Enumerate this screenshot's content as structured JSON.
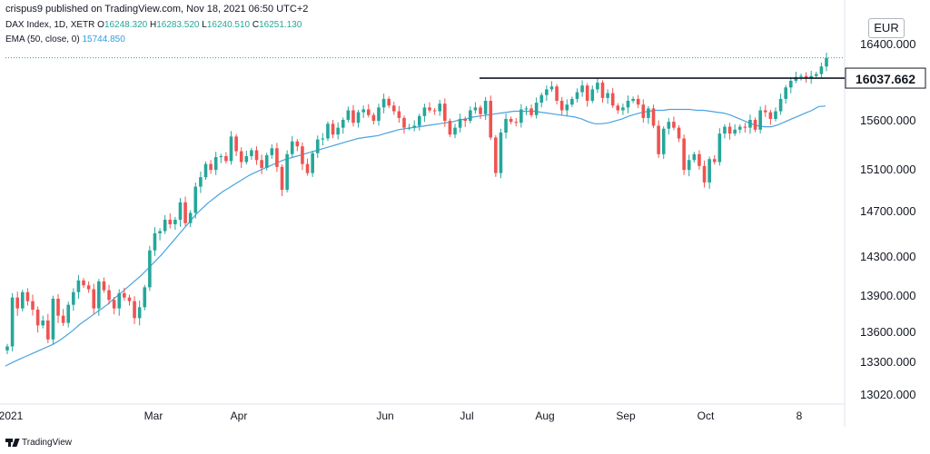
{
  "header": {
    "published": "crispus9 published on TradingView.com, Nov 18, 2021 06:50 UTC+2",
    "symbol": "DAX Index, 1D, XETR",
    "ohlc": [
      {
        "label": "O",
        "value": "16248.320"
      },
      {
        "label": "H",
        "value": "16283.520"
      },
      {
        "label": "L",
        "value": "16240.510"
      },
      {
        "label": "C",
        "value": "16251.130"
      }
    ],
    "ema_label": "EMA (50, close, 0)",
    "ema_value": "15744.850"
  },
  "currency": "EUR",
  "footer": {
    "brand": "TradingView"
  },
  "colors": {
    "up": "#26a69a",
    "down": "#ef5350",
    "ema": "#4aa3df",
    "last_price_line": "#26a69a",
    "resistance": "#131722"
  },
  "chart_data": {
    "type": "candlestick",
    "title": "DAX Index, 1D, XETR",
    "ylim": [
      12900,
      16700
    ],
    "y_ticks": [
      "16400.000",
      "15600.000",
      "15100.000",
      "14700.000",
      "14300.000",
      "13900.000",
      "13600.000",
      "13300.000",
      "13020.000"
    ],
    "x_labels": [
      "2021",
      "Mar",
      "Apr",
      "Jun",
      "Jul",
      "Aug",
      "Sep",
      "Oct",
      "8"
    ],
    "resistance": {
      "label": "16037.662",
      "value": 16037.662
    },
    "last_close": 16251.13,
    "ema_last": 15744.85,
    "candles_description": "daily OHLC path (approximate, read from chart)",
    "close_path": [
      13450,
      13880,
      13790,
      13930,
      13850,
      13780,
      13650,
      13690,
      13520,
      13870,
      13730,
      13670,
      13820,
      13930,
      14050,
      14000,
      13960,
      13790,
      14040,
      13950,
      13860,
      13790,
      13920,
      13880,
      13850,
      13710,
      13800,
      13980,
      14350,
      14500,
      14520,
      14620,
      14580,
      14620,
      14780,
      14590,
      14680,
      14930,
      15020,
      15150,
      15090,
      15220,
      15230,
      15180,
      15430,
      15280,
      15170,
      15230,
      15290,
      15190,
      15110,
      15240,
      15310,
      15120,
      14900,
      15250,
      15380,
      15330,
      15150,
      15060,
      15260,
      15400,
      15410,
      15560,
      15450,
      15520,
      15600,
      15700,
      15570,
      15680,
      15710,
      15650,
      15590,
      15730,
      15820,
      15750,
      15690,
      15620,
      15520,
      15520,
      15540,
      15640,
      15730,
      15700,
      15690,
      15770,
      15590,
      15450,
      15520,
      15610,
      15590,
      15700,
      15730,
      15660,
      15800,
      15420,
      15060,
      15470,
      15610,
      15580,
      15570,
      15710,
      15720,
      15650,
      15780,
      15860,
      15920,
      15950,
      15800,
      15700,
      15760,
      15820,
      15890,
      15960,
      15800,
      15920,
      15990,
      15830,
      15880,
      15750,
      15700,
      15730,
      15800,
      15820,
      15760,
      15620,
      15720,
      15540,
      15250,
      15510,
      15580,
      15520,
      15410,
      15090,
      15190,
      15250,
      15130,
      14970,
      15200,
      15170,
      15460,
      15530,
      15460,
      15500,
      15530,
      15520,
      15600,
      15500,
      15700,
      15680,
      15610,
      15690,
      15820,
      15940,
      16010,
      16050,
      16060,
      16040,
      16060,
      16080,
      16160,
      16250
    ],
    "ema_path": [
      13260,
      13290,
      13320,
      13350,
      13380,
      13410,
      13440,
      13470,
      13510,
      13560,
      13610,
      13660,
      13700,
      13740,
      13780,
      13820,
      13870,
      13920,
      13980,
      14040,
      14100,
      14170,
      14240,
      14310,
      14380,
      14450,
      14520,
      14590,
      14660,
      14720,
      14780,
      14830,
      14880,
      14920,
      14960,
      15000,
      15040,
      15070,
      15100,
      15130,
      15160,
      15190,
      15210,
      15230,
      15250,
      15270,
      15290,
      15310,
      15330,
      15350,
      15370,
      15390,
      15410,
      15420,
      15430,
      15440,
      15460,
      15480,
      15500,
      15510,
      15520,
      15530,
      15540,
      15550,
      15560,
      15570,
      15580,
      15600,
      15610,
      15630,
      15640,
      15650,
      15660,
      15670,
      15680,
      15690,
      15690,
      15690,
      15690,
      15680,
      15670,
      15660,
      15650,
      15640,
      15630,
      15610,
      15580,
      15560,
      15560,
      15570,
      15590,
      15610,
      15640,
      15660,
      15680,
      15690,
      15700,
      15700,
      15710,
      15710,
      15710,
      15710,
      15700,
      15700,
      15690,
      15680,
      15670,
      15650,
      15620,
      15590,
      15560,
      15540,
      15530,
      15530,
      15550,
      15580,
      15610,
      15640,
      15670,
      15700,
      15740,
      15745
    ]
  }
}
